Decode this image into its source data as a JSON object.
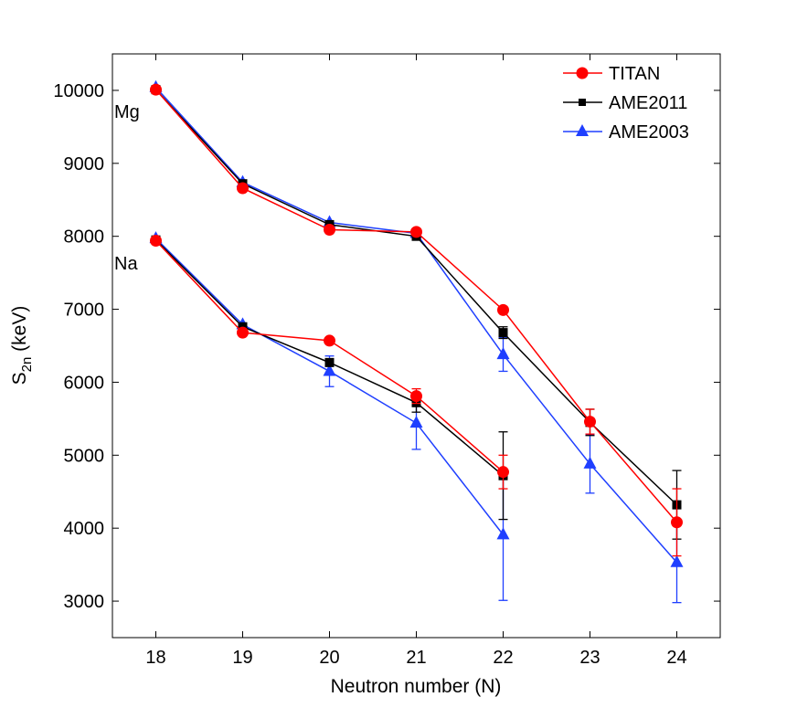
{
  "chart_data": {
    "type": "line",
    "title": "",
    "xlabel": "Neutron number (N)",
    "ylabel": "S",
    "ylabel_sub": "2n",
    "ylabel_suffix": " (keV)",
    "xlim": [
      17.5,
      24.5
    ],
    "ylim": [
      2500,
      10500
    ],
    "xticks": [
      18,
      19,
      20,
      21,
      22,
      23,
      24
    ],
    "yticks": [
      3000,
      4000,
      5000,
      6000,
      7000,
      8000,
      9000,
      10000
    ],
    "legend_position": "top-right",
    "legend": [
      {
        "name": "TITAN",
        "color": "#ff0000",
        "marker": "circle"
      },
      {
        "name": "AME2011",
        "color": "#000000",
        "marker": "square"
      },
      {
        "name": "AME2003",
        "color": "#1f3fff",
        "marker": "triangle"
      }
    ],
    "annotations": [
      {
        "text": "Mg",
        "x": 17.55,
        "y": 9700
      },
      {
        "text": "Na",
        "x": 17.55,
        "y": 7600
      }
    ],
    "series": [
      {
        "name": "AME2003",
        "element": "Mg",
        "color": "#1f3fff",
        "marker": "triangle",
        "x": [
          18,
          19,
          20,
          21,
          22,
          23,
          24
        ],
        "y": [
          10040,
          8740,
          8190,
          8040,
          6380,
          4880,
          3530
        ],
        "err": [
          0,
          0,
          0,
          0,
          230,
          400,
          550
        ]
      },
      {
        "name": "AME2003",
        "element": "Na",
        "color": "#1f3fff",
        "marker": "triangle",
        "x": [
          18,
          19,
          20,
          21,
          22
        ],
        "y": [
          7970,
          6790,
          6150,
          5440,
          3910
        ],
        "err": [
          0,
          0,
          210,
          360,
          900
        ]
      },
      {
        "name": "AME2011",
        "element": "Mg",
        "color": "#000000",
        "marker": "square",
        "x": [
          18,
          19,
          20,
          21,
          22,
          23,
          24
        ],
        "y": [
          10010,
          8720,
          8160,
          8000,
          6680,
          5450,
          4320
        ],
        "err": [
          0,
          0,
          0,
          0,
          80,
          180,
          470
        ]
      },
      {
        "name": "AME2011",
        "element": "Na",
        "color": "#000000",
        "marker": "square",
        "x": [
          18,
          19,
          20,
          21,
          22
        ],
        "y": [
          7950,
          6760,
          6270,
          5720,
          4720
        ],
        "err": [
          0,
          0,
          0,
          130,
          600
        ]
      },
      {
        "name": "TITAN",
        "element": "Mg",
        "color": "#ff0000",
        "marker": "circle",
        "x": [
          18,
          19,
          20,
          21,
          22,
          23,
          24
        ],
        "y": [
          10010,
          8660,
          8090,
          8060,
          6990,
          5460,
          4080
        ],
        "err": [
          0,
          0,
          0,
          0,
          0,
          170,
          460
        ]
      },
      {
        "name": "TITAN",
        "element": "Na",
        "color": "#ff0000",
        "marker": "circle",
        "x": [
          18,
          19,
          20,
          21,
          22
        ],
        "y": [
          7940,
          6680,
          6570,
          5810,
          4770
        ],
        "err": [
          0,
          0,
          0,
          100,
          230
        ]
      }
    ]
  }
}
